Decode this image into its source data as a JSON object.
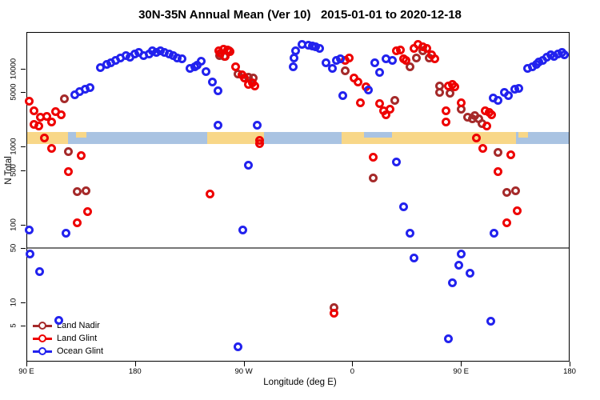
{
  "title": "30N-35N Annual Mean (Ver 10)   2015-01-01 to 2020-12-18",
  "chart_data": {
    "type": "scatter",
    "title": "30N-35N Annual Mean (Ver 10)   2015-01-01 to 2020-12-18",
    "xlabel": "Longitude (deg E)",
    "ylabel": "N Total",
    "x_axis": {
      "range_deg": [
        90,
        540
      ],
      "ticks": [
        {
          "label": "90 E",
          "lon": 90
        },
        {
          "label": "180",
          "lon": 180
        },
        {
          "label": "90 W",
          "lon": 270
        },
        {
          "label": "0",
          "lon": 360
        },
        {
          "label": "90 E",
          "lon": 450
        },
        {
          "label": "180",
          "lon": 540
        }
      ]
    },
    "y_axis": {
      "scale": "log",
      "range": [
        2.5,
        25000
      ],
      "ticks": [
        {
          "label": "10000",
          "value": 10000
        },
        {
          "label": "5000",
          "value": 5000
        },
        {
          "label": "1000",
          "value": 1000
        },
        {
          "label": "500",
          "value": 500
        },
        {
          "label": "100",
          "value": 100
        },
        {
          "label": "50",
          "value": 50
        },
        {
          "label": "10",
          "value": 10
        },
        {
          "label": "5",
          "value": 5
        }
      ]
    },
    "reference_line": {
      "value": 50,
      "color": "#777777"
    },
    "map_strip": {
      "ocean_color": "#A9C3E2",
      "land_color": "#F8D788",
      "n_band": [
        1080,
        1550
      ],
      "land_segments_deg": [
        [
          90,
          124.5
        ],
        [
          239.8,
          286.8
        ],
        [
          351,
          495.6
        ]
      ],
      "island_segments_deg": [
        [
          131,
          139.7
        ],
        [
          497.6,
          505.5
        ]
      ],
      "sea_notches_deg": [
        [
          369.7,
          392.9
        ]
      ]
    },
    "legend": {
      "position": "bottom-left"
    },
    "series": [
      {
        "name": "Land Nadir",
        "color": "#A52A2A",
        "points": [
          [
            121.8,
            4100
          ],
          [
            125.1,
            870
          ],
          [
            131.8,
            265
          ],
          [
            139.1,
            270
          ],
          [
            249.8,
            14900
          ],
          [
            253.7,
            14500
          ],
          [
            257.7,
            17200
          ],
          [
            265,
            8600
          ],
          [
            273.6,
            7800
          ],
          [
            278.2,
            7600
          ],
          [
            344.5,
            8.5
          ],
          [
            354.4,
            9500
          ],
          [
            377.6,
            400
          ],
          [
            395.5,
            3900
          ],
          [
            408.1,
            10600
          ],
          [
            413.4,
            13800
          ],
          [
            418.7,
            17200
          ],
          [
            423.4,
            13800
          ],
          [
            432,
            6000
          ],
          [
            432.6,
            5000
          ],
          [
            440.6,
            4900
          ],
          [
            450.5,
            3000
          ],
          [
            455.8,
            2400
          ],
          [
            459.2,
            2300
          ],
          [
            461.2,
            2500
          ],
          [
            464.5,
            2300
          ],
          [
            467.1,
            2000
          ],
          [
            480.4,
            850
          ],
          [
            487.7,
            260
          ],
          [
            495,
            270
          ]
        ]
      },
      {
        "name": "Land Glint",
        "color": "#EE0000",
        "points": [
          [
            92,
            3800
          ],
          [
            96,
            2900
          ],
          [
            96.6,
            1950
          ],
          [
            100.6,
            1850
          ],
          [
            101.9,
            2400
          ],
          [
            106.6,
            2450
          ],
          [
            111.2,
            2100
          ],
          [
            114.5,
            2800
          ],
          [
            118.5,
            2550
          ],
          [
            105.2,
            1300
          ],
          [
            111.2,
            950
          ],
          [
            125.1,
            480
          ],
          [
            131.8,
            105
          ],
          [
            135.7,
            760
          ],
          [
            140.4,
            145
          ],
          [
            249.1,
            17200
          ],
          [
            251,
            16000
          ],
          [
            253.1,
            18000
          ],
          [
            255,
            14500
          ],
          [
            257,
            17600
          ],
          [
            258.4,
            16800
          ],
          [
            263.6,
            10600
          ],
          [
            268.9,
            8400
          ],
          [
            270.9,
            7600
          ],
          [
            273.6,
            6300
          ],
          [
            276.9,
            6600
          ],
          [
            279.5,
            6000
          ],
          [
            282.9,
            1200
          ],
          [
            282.9,
            1100
          ],
          [
            241.8,
            245
          ],
          [
            344.5,
            7.2
          ],
          [
            354.4,
            12900
          ],
          [
            357.7,
            13800
          ],
          [
            361.7,
            7600
          ],
          [
            365,
            6800
          ],
          [
            367,
            3650
          ],
          [
            371.6,
            5900
          ],
          [
            377.6,
            730
          ],
          [
            382.9,
            3600
          ],
          [
            386.2,
            2900
          ],
          [
            388.2,
            2550
          ],
          [
            391.5,
            3050
          ],
          [
            396.2,
            17200
          ],
          [
            399.5,
            17600
          ],
          [
            402.8,
            13500
          ],
          [
            404.8,
            12900
          ],
          [
            411.4,
            18500
          ],
          [
            414.7,
            20800
          ],
          [
            418.1,
            19400
          ],
          [
            421.4,
            18500
          ],
          [
            426,
            15200
          ],
          [
            428,
            13500
          ],
          [
            437.3,
            2100
          ],
          [
            437.9,
            2900
          ],
          [
            439.9,
            6000
          ],
          [
            442.6,
            6300
          ],
          [
            444.6,
            5900
          ],
          [
            450.5,
            3700
          ],
          [
            462.5,
            1280
          ],
          [
            467.8,
            950
          ],
          [
            470.4,
            2900
          ],
          [
            471.1,
            1850
          ],
          [
            473.7,
            2750
          ],
          [
            475.7,
            2550
          ],
          [
            481,
            480
          ],
          [
            487.7,
            105
          ],
          [
            491.6,
            780
          ],
          [
            496.3,
            150
          ]
        ]
      },
      {
        "name": "Ocean Glint",
        "color": "#2222EE",
        "points": [
          [
            92,
            85
          ],
          [
            93.3,
            42
          ],
          [
            101,
            25
          ],
          [
            117,
            5.9
          ],
          [
            122.5,
            77
          ],
          [
            130.4,
            4700
          ],
          [
            134.4,
            5100
          ],
          [
            138.4,
            5500
          ],
          [
            142.4,
            5700
          ],
          [
            151.6,
            10300
          ],
          [
            156.3,
            11400
          ],
          [
            160.2,
            12000
          ],
          [
            164.2,
            12900
          ],
          [
            168.2,
            13800
          ],
          [
            172.2,
            14900
          ],
          [
            176.1,
            14200
          ],
          [
            180.1,
            15600
          ],
          [
            183.4,
            16400
          ],
          [
            187.4,
            14900
          ],
          [
            191.4,
            15600
          ],
          [
            194.7,
            17200
          ],
          [
            198,
            16400
          ],
          [
            201.3,
            17200
          ],
          [
            204,
            16400
          ],
          [
            208.6,
            15600
          ],
          [
            211.9,
            14900
          ],
          [
            215.2,
            13800
          ],
          [
            218.6,
            13500
          ],
          [
            225.2,
            10100
          ],
          [
            229.2,
            10600
          ],
          [
            231.8,
            11100
          ],
          [
            235.1,
            12600
          ],
          [
            239.1,
            9300
          ],
          [
            243.8,
            6800
          ],
          [
            248.4,
            5200
          ],
          [
            248.4,
            1900
          ],
          [
            265.6,
            2.7
          ],
          [
            269.6,
            85
          ],
          [
            274.2,
            580
          ],
          [
            281.5,
            1900
          ],
          [
            310.7,
            10600
          ],
          [
            312,
            13800
          ],
          [
            312.7,
            17200
          ],
          [
            318.6,
            20800
          ],
          [
            323.3,
            20300
          ],
          [
            326.6,
            19800
          ],
          [
            329.9,
            19400
          ],
          [
            333.2,
            18500
          ],
          [
            337.9,
            12000
          ],
          [
            343.2,
            10100
          ],
          [
            346.5,
            12900
          ],
          [
            349.8,
            13500
          ],
          [
            351.8,
            4500
          ],
          [
            373,
            5300
          ],
          [
            378.3,
            12000
          ],
          [
            382.9,
            9100
          ],
          [
            387.6,
            13500
          ],
          [
            392.9,
            12900
          ],
          [
            396.2,
            630
          ],
          [
            402.8,
            170
          ],
          [
            408.1,
            77
          ],
          [
            410.8,
            37
          ],
          [
            439.3,
            3.4
          ],
          [
            443.2,
            18
          ],
          [
            447.9,
            30
          ],
          [
            450.5,
            42
          ],
          [
            457.2,
            24
          ],
          [
            474.4,
            5.8
          ],
          [
            477.7,
            77
          ],
          [
            477,
            4200
          ],
          [
            480.4,
            3900
          ],
          [
            485.7,
            5000
          ],
          [
            489,
            4500
          ],
          [
            494.3,
            5500
          ],
          [
            497.6,
            5600
          ],
          [
            505.5,
            10100
          ],
          [
            508.9,
            10600
          ],
          [
            512.2,
            11400
          ],
          [
            514.2,
            12300
          ],
          [
            517.5,
            12900
          ],
          [
            520.8,
            14200
          ],
          [
            524.1,
            15200
          ],
          [
            526.8,
            14500
          ],
          [
            530.1,
            15600
          ],
          [
            533.4,
            16400
          ],
          [
            535.4,
            15200
          ]
        ]
      }
    ]
  }
}
